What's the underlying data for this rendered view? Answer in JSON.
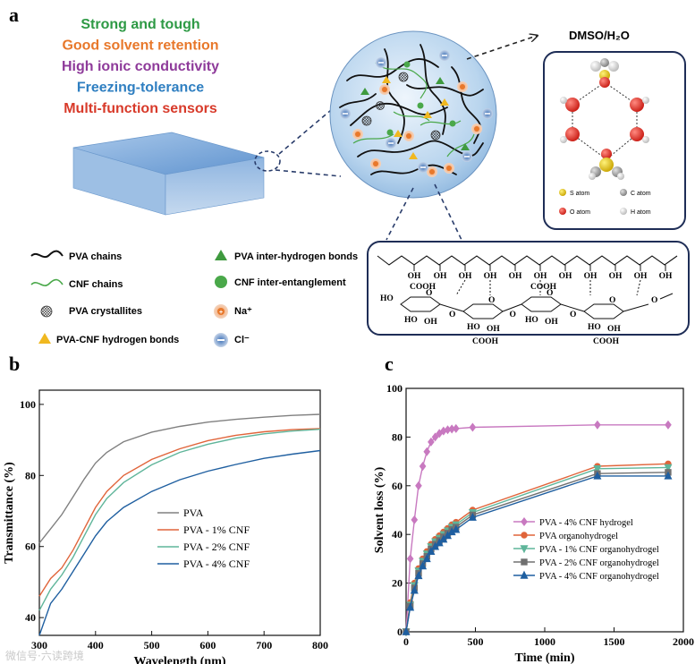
{
  "panel_a": {
    "letter": "a",
    "features": [
      {
        "text": "Strong and tough",
        "color": "#2e9a45"
      },
      {
        "text": "Good solvent retention",
        "color": "#e8782b"
      },
      {
        "text": "High ionic conductivity",
        "color": "#8e3a9a"
      },
      {
        "text": "Freezing-tolerance",
        "color": "#2f7fc1"
      },
      {
        "text": "Multi-function sensors",
        "color": "#d83a2a"
      }
    ],
    "solvent_label": "DMSO/H₂O",
    "atom_legend": {
      "s": "S atom",
      "c": "C atom",
      "o": "O atom",
      "h": "H atom"
    },
    "legend": {
      "pva_chains": "PVA chains",
      "cnf_chains": "CNF chains",
      "pva_crystallites": "PVA crystallites",
      "pva_cnf_hbonds": "PVA-CNF hydrogen bonds",
      "pva_inter_hbonds": "PVA inter-hydrogen bonds",
      "cnf_entanglement": "CNF inter-entanglement",
      "na": "Na⁺",
      "cl": "Cl⁻"
    },
    "chem": {
      "oh": "OH",
      "ho": "HO",
      "cooh": "COOH",
      "o": "O"
    }
  },
  "chart_data": [
    {
      "panel": "b",
      "type": "line",
      "xlabel": "Wavelength (nm)",
      "ylabel": "Transmittance (%)",
      "xlim": [
        300,
        800
      ],
      "ylim": [
        35,
        104
      ],
      "xticks": [
        300,
        400,
        500,
        600,
        700,
        800
      ],
      "yticks": [
        40,
        60,
        80,
        100
      ],
      "legend_position": "center-right",
      "x": [
        300,
        320,
        340,
        360,
        380,
        400,
        420,
        450,
        500,
        550,
        600,
        650,
        700,
        750,
        800
      ],
      "series": [
        {
          "name": "PVA",
          "color": "#808080",
          "values": [
            61,
            65,
            69,
            74,
            79,
            83.5,
            86.5,
            89.5,
            92.2,
            93.8,
            95.0,
            95.8,
            96.4,
            96.9,
            97.2
          ]
        },
        {
          "name": "PVA - 1% CNF",
          "color": "#e0643a",
          "values": [
            46,
            51,
            54,
            59,
            65,
            71,
            75.5,
            80,
            84.5,
            87.5,
            89.8,
            91.3,
            92.3,
            92.9,
            93.2
          ]
        },
        {
          "name": "PVA - 2% CNF",
          "color": "#5fb59a",
          "values": [
            42,
            48,
            52,
            57,
            63,
            69,
            73.5,
            78,
            83,
            86.5,
            88.8,
            90.5,
            91.7,
            92.5,
            93.0
          ]
        },
        {
          "name": "PVA - 4% CNF",
          "color": "#1f5fa0",
          "values": [
            35,
            44,
            48,
            53,
            58,
            63,
            67,
            71,
            75.5,
            78.8,
            81.2,
            83.1,
            84.8,
            86.0,
            87.0
          ]
        }
      ]
    },
    {
      "panel": "c",
      "type": "line",
      "xlabel": "Time (min)",
      "ylabel": "Solvent loss (%)",
      "xlim": [
        0,
        2000
      ],
      "ylim": [
        0,
        100
      ],
      "xticks": [
        0,
        500,
        1000,
        1500,
        2000
      ],
      "yticks": [
        0,
        20,
        40,
        60,
        80,
        100
      ],
      "legend_position": "center-right",
      "x": [
        0,
        30,
        60,
        90,
        120,
        150,
        180,
        210,
        240,
        270,
        300,
        330,
        360,
        480,
        1380,
        1890
      ],
      "series": [
        {
          "name": "PVA - 4% CNF hydrogel",
          "color": "#c879c0",
          "marker": "diamond",
          "x": [
            0,
            30,
            60,
            90,
            120,
            150,
            180,
            210,
            240,
            270,
            300,
            330,
            360,
            480,
            1380,
            1890
          ],
          "values": [
            0,
            30,
            46,
            60,
            68,
            74,
            78,
            80,
            81.5,
            82.5,
            83,
            83.3,
            83.5,
            84,
            85,
            85
          ]
        },
        {
          "name": "PVA organohydrogel",
          "color": "#e0643a",
          "marker": "circle",
          "x": [
            0,
            30,
            60,
            90,
            120,
            150,
            180,
            210,
            240,
            270,
            300,
            330,
            360,
            480,
            1380,
            1890
          ],
          "values": [
            0,
            12,
            20,
            26,
            30,
            33,
            36,
            38,
            39.5,
            41,
            42.5,
            44,
            45,
            50,
            68,
            69
          ]
        },
        {
          "name": "PVA - 1% CNF organohydrogel",
          "color": "#5fb59a",
          "marker": "triangle-down",
          "x": [
            0,
            30,
            60,
            90,
            120,
            150,
            180,
            210,
            240,
            270,
            300,
            330,
            360,
            480,
            1380,
            1890
          ],
          "values": [
            0,
            11,
            19,
            25,
            29,
            32,
            35,
            37,
            38.5,
            40,
            41.5,
            43,
            44,
            49,
            67,
            67.5
          ]
        },
        {
          "name": "PVA - 2% CNF organohydrogel",
          "color": "#707070",
          "marker": "square",
          "x": [
            0,
            30,
            60,
            90,
            120,
            150,
            180,
            210,
            240,
            270,
            300,
            330,
            360,
            480,
            1380,
            1890
          ],
          "values": [
            0,
            10.5,
            18,
            24,
            28,
            31,
            34,
            36,
            37.5,
            39,
            40.5,
            42,
            43,
            48,
            65,
            65.5
          ]
        },
        {
          "name": "PVA - 4% CNF organohydrogel",
          "color": "#1f5fa0",
          "marker": "triangle-up",
          "x": [
            0,
            30,
            60,
            90,
            120,
            150,
            180,
            210,
            240,
            270,
            300,
            330,
            360,
            480,
            1380,
            1890
          ],
          "values": [
            0,
            10,
            17,
            23,
            27,
            30,
            33,
            35,
            36.5,
            38,
            39.5,
            41,
            42,
            47,
            64,
            64
          ]
        }
      ]
    }
  ],
  "panel_letters": {
    "b": "b",
    "c": "c"
  },
  "watermark": "微信号·六读跨境"
}
